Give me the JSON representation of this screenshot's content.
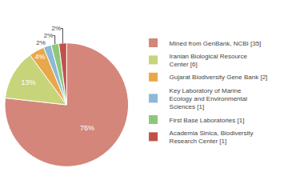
{
  "chart_data": {
    "type": "pie",
    "categories": [
      "Mined from GenBank, NCBI [35]",
      "Iranian Biological Resource\nCenter [6]",
      "Gujarat Biodiversity Gene Bank [2]",
      "Key Laboratory of Marine\nEcology and Environmental\nSciences [1]",
      "First Base Laboratories [1]",
      "Academia Sinica, Biodiversity\nResearch Center [1]"
    ],
    "values": [
      76,
      13,
      4,
      2,
      2,
      2
    ],
    "value_labels": [
      "76%",
      "13%",
      "4%",
      "2%",
      "2%",
      "2%"
    ],
    "data_labels": true,
    "colors": [
      "#d4867a",
      "#c8d47a",
      "#e8a84a",
      "#8eb8d8",
      "#8dc87a",
      "#c0504a"
    ],
    "legend": "right"
  }
}
